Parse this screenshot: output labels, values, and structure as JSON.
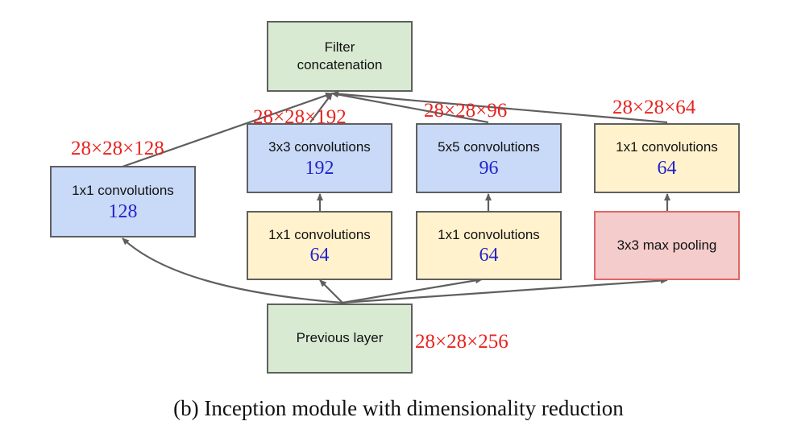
{
  "nodes": {
    "filter_concat": {
      "label_line1": "Filter",
      "label_line2": "concatenation"
    },
    "conv1x1_direct": {
      "label": "1x1 convolutions",
      "value": "128"
    },
    "conv3x3": {
      "label": "3x3 convolutions",
      "value": "192"
    },
    "conv3x3_reduce": {
      "label": "1x1 convolutions",
      "value": "64"
    },
    "conv5x5": {
      "label": "5x5 convolutions",
      "value": "96"
    },
    "conv5x5_reduce": {
      "label": "1x1 convolutions",
      "value": "64"
    },
    "pool_proj": {
      "label": "1x1 convolutions",
      "value": "64"
    },
    "max_pool": {
      "label": "3x3 max pooling"
    },
    "previous_layer": {
      "label": "Previous layer"
    }
  },
  "dimensions": {
    "branch1": "28×28×128",
    "branch2": "28×28×192",
    "branch3": "28×28×96",
    "branch4": "28×28×64",
    "input": "28×28×256"
  },
  "caption": "(b)  Inception module with dimensionality reduction",
  "colors": {
    "green": "#d9ead3",
    "blue": "#c9daf8",
    "yellow": "#fff2cc",
    "pink": "#f4cccc",
    "pink_border": "#e06666",
    "border": "#5f5f5f",
    "dimension_text": "#e8231f",
    "value_text": "#2222cc"
  }
}
